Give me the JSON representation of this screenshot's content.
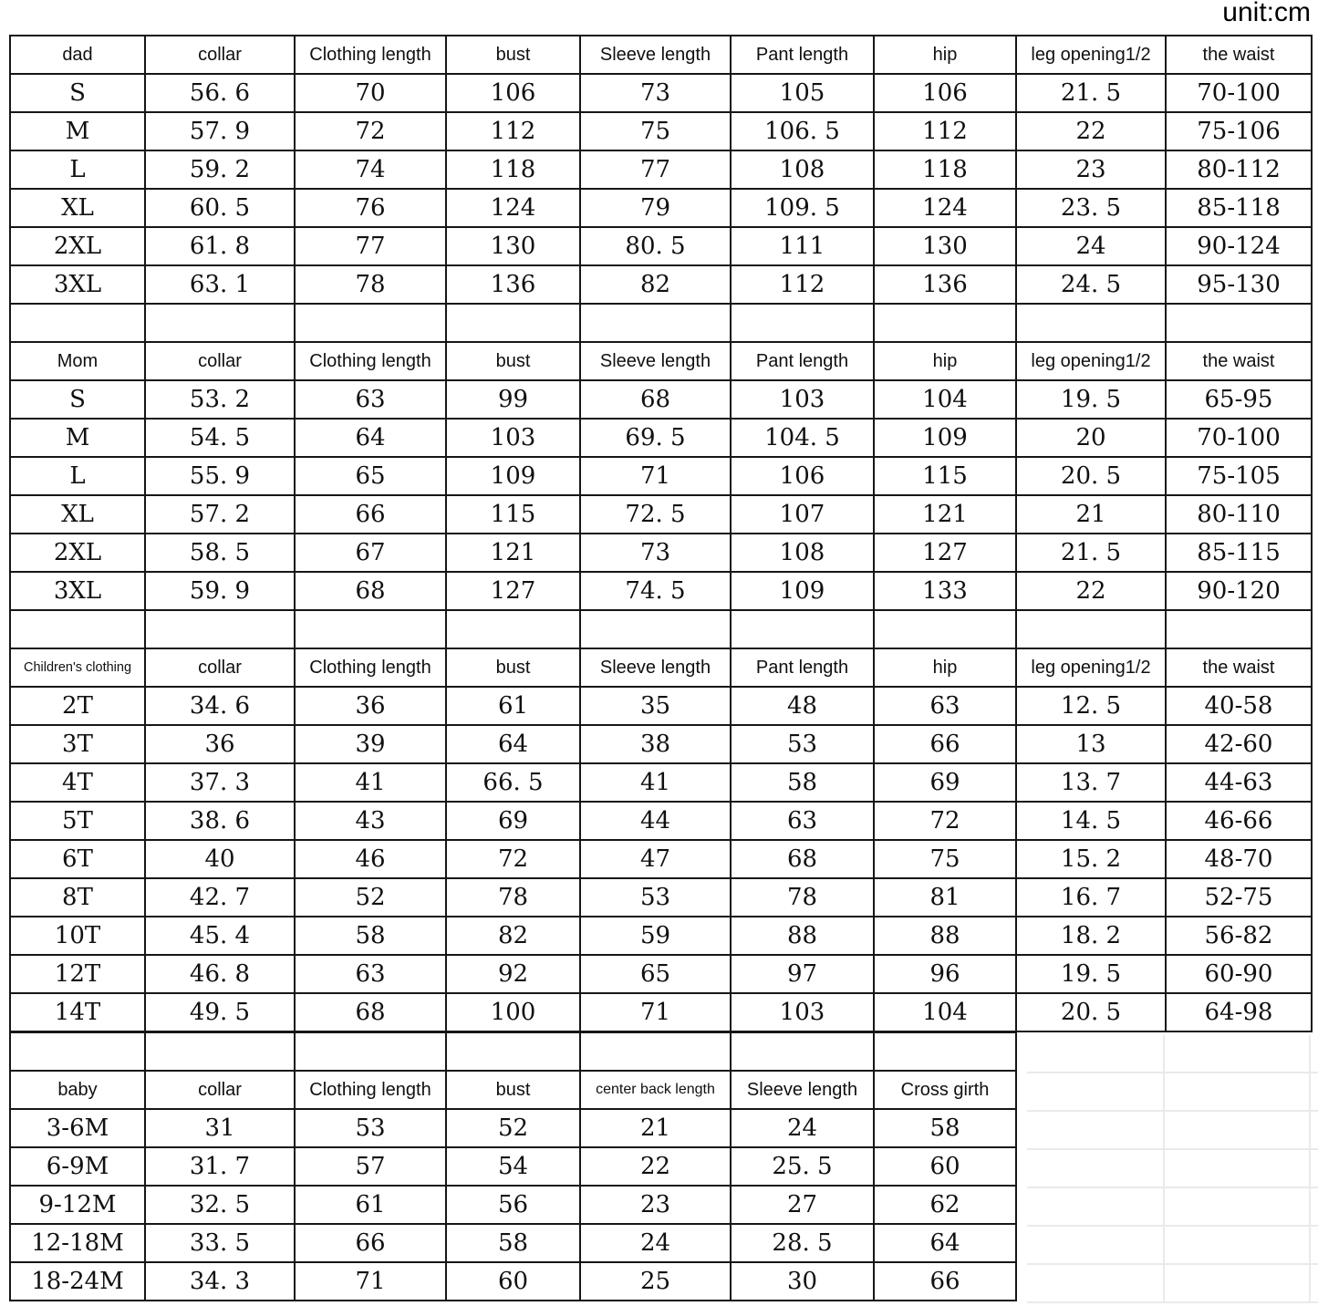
{
  "unit_label": "unit:cm",
  "colors": {
    "background": "#ffffff",
    "table_border": "#161616",
    "text": "#101010",
    "faint_gridline": "#eaeaea"
  },
  "sections": {
    "dad": {
      "label": "dad",
      "headers": [
        "collar",
        "Clothing length",
        "bust",
        "Sleeve length",
        "Pant length",
        "hip",
        "leg opening1/2",
        "the waist"
      ],
      "rows": [
        [
          "S",
          "56. 6",
          "70",
          "106",
          "73",
          "105",
          "106",
          "21. 5",
          "70-100"
        ],
        [
          "M",
          "57. 9",
          "72",
          "112",
          "75",
          "106. 5",
          "112",
          "22",
          "75-106"
        ],
        [
          "L",
          "59. 2",
          "74",
          "118",
          "77",
          "108",
          "118",
          "23",
          "80-112"
        ],
        [
          "XL",
          "60. 5",
          "76",
          "124",
          "79",
          "109. 5",
          "124",
          "23. 5",
          "85-118"
        ],
        [
          "2XL",
          "61. 8",
          "77",
          "130",
          "80. 5",
          "111",
          "130",
          "24",
          "90-124"
        ],
        [
          "3XL",
          "63. 1",
          "78",
          "136",
          "82",
          "112",
          "136",
          "24. 5",
          "95-130"
        ]
      ]
    },
    "mom": {
      "label": "Mom",
      "headers": [
        "collar",
        "Clothing length",
        "bust",
        "Sleeve length",
        "Pant length",
        "hip",
        "leg opening1/2",
        "the waist"
      ],
      "rows": [
        [
          "S",
          "53. 2",
          "63",
          "99",
          "68",
          "103",
          "104",
          "19. 5",
          "65-95"
        ],
        [
          "M",
          "54. 5",
          "64",
          "103",
          "69. 5",
          "104. 5",
          "109",
          "20",
          "70-100"
        ],
        [
          "L",
          "55. 9",
          "65",
          "109",
          "71",
          "106",
          "115",
          "20. 5",
          "75-105"
        ],
        [
          "XL",
          "57. 2",
          "66",
          "115",
          "72. 5",
          "107",
          "121",
          "21",
          "80-110"
        ],
        [
          "2XL",
          "58. 5",
          "67",
          "121",
          "73",
          "108",
          "127",
          "21. 5",
          "85-115"
        ],
        [
          "3XL",
          "59. 9",
          "68",
          "127",
          "74. 5",
          "109",
          "133",
          "22",
          "90-120"
        ]
      ]
    },
    "children": {
      "label": "Children's clothing",
      "headers": [
        "collar",
        "Clothing length",
        "bust",
        "Sleeve length",
        "Pant length",
        "hip",
        "leg opening1/2",
        "the waist"
      ],
      "rows": [
        [
          "2T",
          "34. 6",
          "36",
          "61",
          "35",
          "48",
          "63",
          "12. 5",
          "40-58"
        ],
        [
          "3T",
          "36",
          "39",
          "64",
          "38",
          "53",
          "66",
          "13",
          "42-60"
        ],
        [
          "4T",
          "37. 3",
          "41",
          "66. 5",
          "41",
          "58",
          "69",
          "13. 7",
          "44-63"
        ],
        [
          "5T",
          "38. 6",
          "43",
          "69",
          "44",
          "63",
          "72",
          "14. 5",
          "46-66"
        ],
        [
          "6T",
          "40",
          "46",
          "72",
          "47",
          "68",
          "75",
          "15. 2",
          "48-70"
        ],
        [
          "8T",
          "42. 7",
          "52",
          "78",
          "53",
          "78",
          "81",
          "16. 7",
          "52-75"
        ],
        [
          "10T",
          "45. 4",
          "58",
          "82",
          "59",
          "88",
          "88",
          "18. 2",
          "56-82"
        ],
        [
          "12T",
          "46. 8",
          "63",
          "92",
          "65",
          "97",
          "96",
          "19. 5",
          "60-90"
        ],
        [
          "14T",
          "49. 5",
          "68",
          "100",
          "71",
          "103",
          "104",
          "20. 5",
          "64-98"
        ]
      ]
    },
    "baby": {
      "label": "baby",
      "headers": [
        "collar",
        "Clothing length",
        "bust",
        "center back length",
        "Sleeve length",
        "Cross girth"
      ],
      "rows": [
        [
          "3-6M",
          "31",
          "53",
          "52",
          "21",
          "24",
          "58"
        ],
        [
          "6-9M",
          "31. 7",
          "57",
          "54",
          "22",
          "25. 5",
          "60"
        ],
        [
          "9-12M",
          "32. 5",
          "61",
          "56",
          "23",
          "27",
          "62"
        ],
        [
          "12-18M",
          "33. 5",
          "66",
          "58",
          "24",
          "28. 5",
          "64"
        ],
        [
          "18-24M",
          "34. 3",
          "71",
          "60",
          "25",
          "30",
          "66"
        ]
      ]
    }
  }
}
